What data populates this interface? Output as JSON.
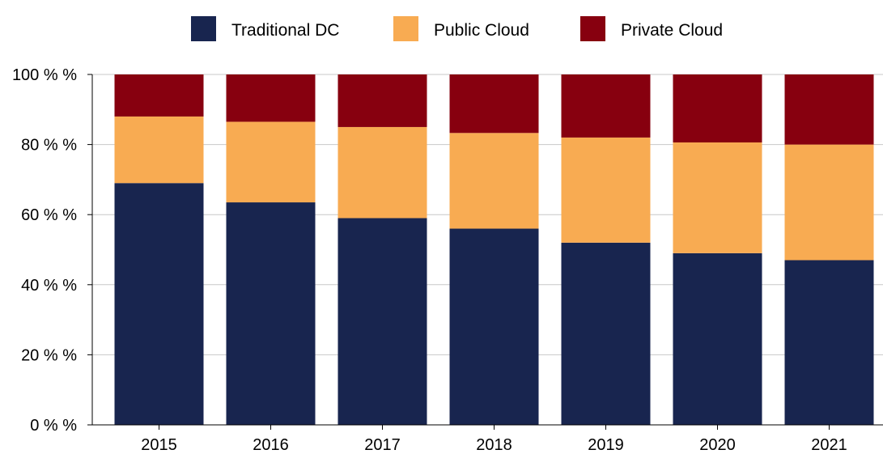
{
  "chart_data": {
    "type": "bar",
    "stacked": true,
    "title": "",
    "xlabel": "",
    "ylabel": "",
    "categories": [
      "2015",
      "2016",
      "2017",
      "2018",
      "2019",
      "2020",
      "2021"
    ],
    "series": [
      {
        "name": "Traditional DC",
        "color": "#18254f",
        "values": [
          69,
          63.5,
          59,
          56,
          52,
          49,
          47
        ]
      },
      {
        "name": "Public Cloud",
        "color": "#f8ab52",
        "values": [
          19,
          23,
          26,
          27.3,
          30,
          31.6,
          33
        ]
      },
      {
        "name": "Private Cloud",
        "color": "#87000f",
        "values": [
          12,
          13.5,
          15,
          16.7,
          18,
          19.4,
          20
        ]
      }
    ],
    "ylim": [
      0,
      100
    ],
    "yticks": [
      0,
      20,
      40,
      60,
      80,
      100
    ],
    "ytick_labels": [
      "0 % %",
      "20 % %",
      "40 % %",
      "60 % %",
      "80 % %",
      "100 % %"
    ],
    "grid": true,
    "legend_position": "top"
  }
}
